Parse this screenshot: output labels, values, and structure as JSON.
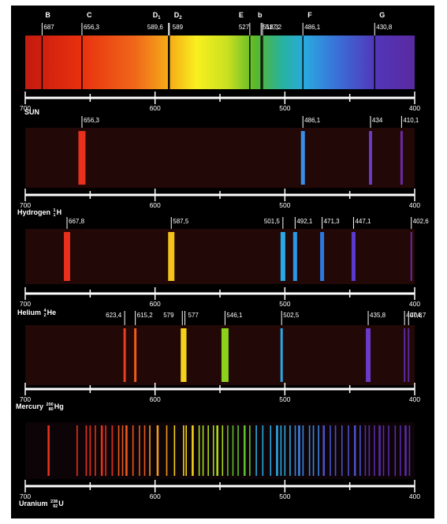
{
  "axis": {
    "ticks": [
      "700",
      "600",
      "500",
      "400"
    ]
  },
  "spectra": [
    {
      "id": "sun",
      "name": "SUN",
      "line_color": "#000000",
      "fraunhofer": [
        {
          "letter": "B",
          "sub": ""
        },
        {
          "letter": "C",
          "sub": ""
        },
        {
          "letter": "D",
          "sub": "1"
        },
        {
          "letter": "D",
          "sub": "2"
        },
        {
          "letter": "E",
          "sub": ""
        },
        {
          "letter": "b",
          "sub": ""
        },
        {
          "letter": "F",
          "sub": ""
        },
        {
          "letter": "G",
          "sub": ""
        }
      ],
      "lines": [
        {
          "wl": 687,
          "label": "687"
        },
        {
          "wl": 656.3,
          "label": "656,3"
        },
        {
          "wl": 589.6,
          "label": "589,6"
        },
        {
          "wl": 589,
          "label": "589"
        },
        {
          "wl": 527,
          "label": "527"
        },
        {
          "wl": 518.3,
          "label": "518,3"
        },
        {
          "wl": 517.2,
          "label": "517,2"
        },
        {
          "wl": 486.1,
          "label": "486,1"
        },
        {
          "wl": 430.8,
          "label": "430,8"
        }
      ]
    },
    {
      "id": "hydrogen",
      "name": "Hydrogen",
      "iso_mass": "1",
      "iso_atomic": "1",
      "symbol": "H",
      "lines": [
        {
          "wl": 656.3,
          "label": "656,3",
          "color": "#e8301c"
        },
        {
          "wl": 486.1,
          "label": "486,1",
          "color": "#3a8ee8"
        },
        {
          "wl": 434,
          "label": "434",
          "color": "#6a3ac8"
        },
        {
          "wl": 410.1,
          "label": "410,1",
          "color": "#6a2aa8"
        }
      ]
    },
    {
      "id": "helium",
      "name": "Helium",
      "iso_mass": "4",
      "iso_atomic": "2",
      "symbol": "He",
      "lines": [
        {
          "wl": 667.8,
          "label": "667,8",
          "color": "#e8301c"
        },
        {
          "wl": 587.5,
          "label": "587,5",
          "color": "#f4c21c"
        },
        {
          "wl": 501.5,
          "label": "501,5",
          "color": "#2aa8e8"
        },
        {
          "wl": 492.1,
          "label": "492,1",
          "color": "#2a98e8"
        },
        {
          "wl": 471.3,
          "label": "471,3",
          "color": "#2a78e0"
        },
        {
          "wl": 447.1,
          "label": "447,1",
          "color": "#5a3ad0"
        },
        {
          "wl": 402.6,
          "label": "402,6",
          "color": "#6a2aa0"
        }
      ]
    },
    {
      "id": "mercury",
      "name": "Mercury",
      "iso_mass": "200",
      "iso_atomic": "80",
      "symbol": "Hg",
      "lines": [
        {
          "wl": 623.4,
          "label": "623,4",
          "color": "#e8401c"
        },
        {
          "wl": 615.2,
          "label": "615,2",
          "color": "#ec5a1c"
        },
        {
          "wl": 579,
          "label": "579",
          "color": "#f4d21c"
        },
        {
          "wl": 577,
          "label": "577",
          "color": "#f4d21c"
        },
        {
          "wl": 546.1,
          "label": "546,1",
          "color": "#8cd21c"
        },
        {
          "wl": 502.5,
          "label": "502,5",
          "color": "#2aa8e8"
        },
        {
          "wl": 435.8,
          "label": "435,8",
          "color": "#6a3ac8"
        },
        {
          "wl": 407.8,
          "label": "407,8",
          "color": "#5a2aa8"
        },
        {
          "wl": 404.7,
          "label": "404,7",
          "color": "#5a2a98"
        }
      ]
    },
    {
      "id": "uranium",
      "name": "Uranium",
      "iso_mass": "238",
      "iso_atomic": "92",
      "symbol": "U",
      "lines": []
    }
  ]
}
